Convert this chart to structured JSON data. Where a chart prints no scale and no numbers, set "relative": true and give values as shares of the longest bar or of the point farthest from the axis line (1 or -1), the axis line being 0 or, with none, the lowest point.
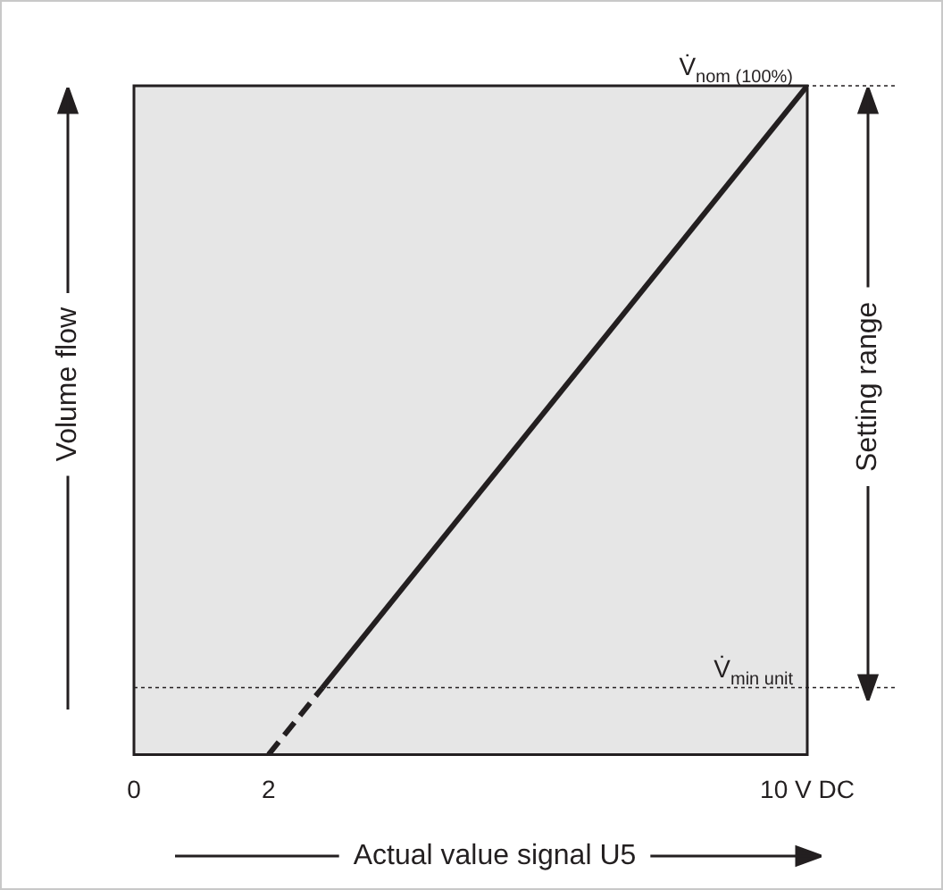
{
  "chart_data": {
    "type": "line",
    "xlabel": "Actual value signal U5",
    "ylabel": "Volume flow",
    "relative": true,
    "xlim": [
      0,
      10
    ],
    "xticks": [
      0,
      2,
      {
        "value": 10,
        "label": "10 V DC"
      }
    ],
    "legend": false,
    "marker": "none",
    "series": [
      {
        "color": "#231f20",
        "x": [
          2,
          2.8
        ],
        "values": [
          0,
          0.1
        ],
        "line_style": "dashed"
      },
      {
        "color": "#231f20",
        "x": [
          2.8,
          10
        ],
        "values": [
          0.1,
          1
        ],
        "line_style": "solid"
      }
    ],
    "ref_lines": [
      {
        "axis": "y",
        "value": 1,
        "label": "V̇$_{nom (100%)}$",
        "line_style": "dotted"
      },
      {
        "axis": "y",
        "value": 0.1,
        "label": "V̇$_{min unit}$",
        "line_style": "dotted"
      }
    ],
    "annotations": [
      "Setting range"
    ]
  }
}
